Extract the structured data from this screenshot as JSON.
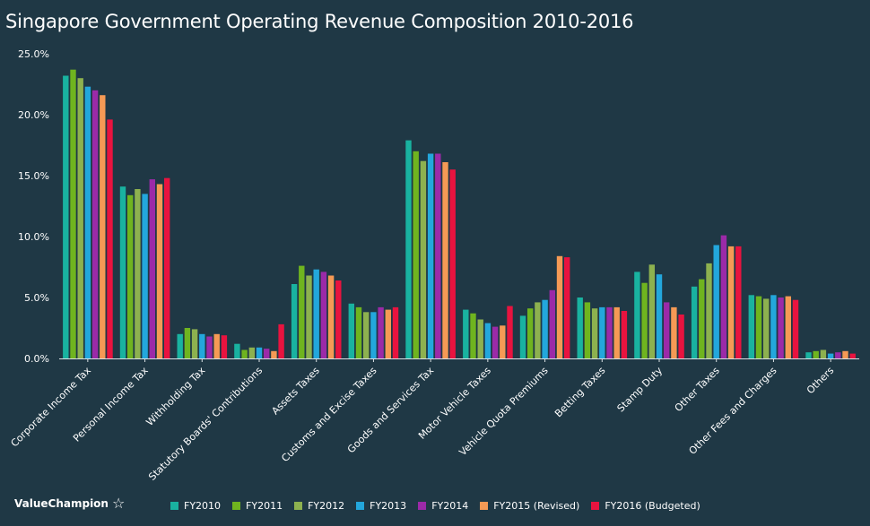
{
  "title": "Singapore Government Operating Revenue Composition 2010-2016",
  "brand": {
    "name": "ValueChampion",
    "icon": "star-icon"
  },
  "chart_data": {
    "type": "bar",
    "title": "Singapore Government Operating Revenue Composition 2010-2016",
    "xlabel": "",
    "ylabel": "",
    "ylim": [
      0,
      0.25
    ],
    "yticks": [
      "0.0%",
      "5.0%",
      "10.0%",
      "15.0%",
      "20.0%",
      "25.0%"
    ],
    "grid": false,
    "legend_position": "bottom",
    "categories": [
      "Corporate Income Tax",
      "Personal Income Tax",
      "Withholding Tax",
      "Statutory Boards' Contributions",
      "Assets Taxes",
      "Customs and Excise Taxes",
      "Goods and Services Tax",
      "Motor Vehicle Taxes",
      "Vehicle Quota Premiums",
      "Betting Taxes",
      "Stamp Duty",
      "Other Taxes",
      "Other Fees and Charges",
      "Others"
    ],
    "series": [
      {
        "name": "FY2010",
        "color": "#19b2a0",
        "values": [
          0.232,
          0.141,
          0.02,
          0.012,
          0.061,
          0.045,
          0.179,
          0.04,
          0.035,
          0.05,
          0.071,
          0.059,
          0.052,
          0.005
        ]
      },
      {
        "name": "FY2011",
        "color": "#6fb41f",
        "values": [
          0.237,
          0.134,
          0.025,
          0.007,
          0.076,
          0.042,
          0.17,
          0.037,
          0.041,
          0.046,
          0.062,
          0.065,
          0.051,
          0.006
        ]
      },
      {
        "name": "FY2012",
        "color": "#8db14f",
        "values": [
          0.23,
          0.139,
          0.024,
          0.009,
          0.068,
          0.038,
          0.162,
          0.032,
          0.046,
          0.041,
          0.077,
          0.078,
          0.049,
          0.007
        ]
      },
      {
        "name": "FY2013",
        "color": "#23a7dc",
        "values": [
          0.223,
          0.135,
          0.02,
          0.009,
          0.073,
          0.038,
          0.168,
          0.029,
          0.048,
          0.042,
          0.069,
          0.093,
          0.052,
          0.004
        ]
      },
      {
        "name": "FY2014",
        "color": "#9b2aa8",
        "values": [
          0.22,
          0.147,
          0.018,
          0.008,
          0.071,
          0.042,
          0.168,
          0.026,
          0.056,
          0.042,
          0.046,
          0.101,
          0.05,
          0.005
        ]
      },
      {
        "name": "FY2015 (Revised)",
        "color": "#f59a55",
        "values": [
          0.216,
          0.143,
          0.02,
          0.006,
          0.068,
          0.04,
          0.161,
          0.027,
          0.084,
          0.042,
          0.042,
          0.092,
          0.051,
          0.006
        ]
      },
      {
        "name": "FY2016 (Budgeted)",
        "color": "#e8133f",
        "values": [
          0.196,
          0.148,
          0.019,
          0.028,
          0.064,
          0.042,
          0.155,
          0.043,
          0.083,
          0.039,
          0.036,
          0.092,
          0.048,
          0.004
        ]
      }
    ]
  }
}
